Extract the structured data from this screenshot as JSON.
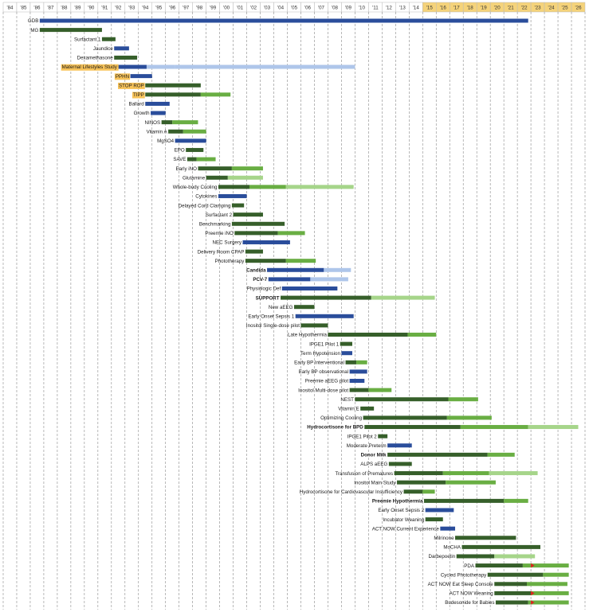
{
  "chart_data": {
    "type": "gantt",
    "title": "",
    "x_axis": {
      "start_year": 1984,
      "end_year": 2026,
      "tick_labels": [
        "'84",
        "'85",
        "'86",
        "'87",
        "'88",
        "'89",
        "'90",
        "'91",
        "'92",
        "'93",
        "'94",
        "'95",
        "'96",
        "'97",
        "'98",
        "'99",
        "'00",
        "'01",
        "'02",
        "'03",
        "'04",
        "'05",
        "'06",
        "'07",
        "'08",
        "'09",
        "'10",
        "'11",
        "'12",
        "'13",
        "'14",
        "'15",
        "'16",
        "'17",
        "'18",
        "'19",
        "'20",
        "'21",
        "'22",
        "'23",
        "'24",
        "'25",
        "'26"
      ],
      "highlight_from_year": 2015,
      "highlight_color": "#f5d37a",
      "grid": "vertical dashed per year"
    },
    "colors": {
      "navy": "#2a4d9b",
      "light_blue": "#aec6ea",
      "dark_green": "#365f2a",
      "mid_green": "#69ae43",
      "light_green": "#a6d58a",
      "highlight_label": "#f7c35a",
      "flag_red": "#e02020"
    },
    "studies": [
      {
        "name": "GDB",
        "segments": [
          {
            "start": 1986.7,
            "end": 2022.8,
            "color": "navy"
          }
        ]
      },
      {
        "name": "MG",
        "segments": [
          {
            "start": 1986.7,
            "end": 1991.3,
            "color": "dark_green"
          }
        ]
      },
      {
        "name": "Surfactant 1",
        "segments": [
          {
            "start": 1991.3,
            "end": 1992.3,
            "color": "dark_green"
          }
        ]
      },
      {
        "name": "Jaundice",
        "segments": [
          {
            "start": 1992.2,
            "end": 1993.3,
            "color": "navy"
          }
        ]
      },
      {
        "name": "Dexamethasone",
        "segments": [
          {
            "start": 1992.2,
            "end": 1993.9,
            "color": "dark_green"
          }
        ]
      },
      {
        "name": "Maternal Lifestyles Study",
        "highlight": true,
        "segments": [
          {
            "start": 1992.5,
            "end": 1994.6,
            "color": "navy"
          },
          {
            "start": 1994.6,
            "end": 1996.7,
            "color": "light_blue"
          },
          {
            "start": 1996.7,
            "end": 2010.0,
            "color": "light_blue"
          }
        ]
      },
      {
        "name": "PPHN",
        "highlight": true,
        "segments": [
          {
            "start": 1993.4,
            "end": 1995.0,
            "color": "navy"
          }
        ]
      },
      {
        "name": "STOP ROP",
        "highlight": true,
        "segments": [
          {
            "start": 1994.5,
            "end": 1998.6,
            "color": "dark_green"
          }
        ]
      },
      {
        "name": "TIPP",
        "highlight": true,
        "segments": [
          {
            "start": 1994.5,
            "end": 1998.6,
            "color": "dark_green"
          },
          {
            "start": 1998.6,
            "end": 2000.8,
            "color": "mid_green"
          }
        ]
      },
      {
        "name": "Ballard",
        "segments": [
          {
            "start": 1994.5,
            "end": 1996.3,
            "color": "navy"
          }
        ]
      },
      {
        "name": "Growth",
        "segments": [
          {
            "start": 1994.9,
            "end": 1996.0,
            "color": "navy"
          }
        ]
      },
      {
        "name": "NINOS",
        "segments": [
          {
            "start": 1995.7,
            "end": 1996.5,
            "color": "dark_green"
          },
          {
            "start": 1996.5,
            "end": 1998.4,
            "color": "mid_green"
          }
        ]
      },
      {
        "name": "Vitamin A",
        "segments": [
          {
            "start": 1996.2,
            "end": 1997.3,
            "color": "dark_green"
          },
          {
            "start": 1997.3,
            "end": 1999.0,
            "color": "mid_green"
          }
        ]
      },
      {
        "name": "MgSO4",
        "segments": [
          {
            "start": 1996.7,
            "end": 1999.0,
            "color": "navy"
          }
        ]
      },
      {
        "name": "EPO",
        "segments": [
          {
            "start": 1997.5,
            "end": 1998.8,
            "color": "dark_green"
          }
        ]
      },
      {
        "name": "SAVE",
        "segments": [
          {
            "start": 1997.6,
            "end": 1998.3,
            "color": "dark_green"
          },
          {
            "start": 1998.3,
            "end": 1999.7,
            "color": "mid_green"
          }
        ]
      },
      {
        "name": "Early iNO",
        "segments": [
          {
            "start": 1998.4,
            "end": 2000.9,
            "color": "dark_green"
          },
          {
            "start": 2000.9,
            "end": 2003.2,
            "color": "mid_green"
          }
        ]
      },
      {
        "name": "Glutamine",
        "segments": [
          {
            "start": 1999.0,
            "end": 2000.6,
            "color": "dark_green"
          },
          {
            "start": 2000.6,
            "end": 2003.2,
            "color": "light_green"
          }
        ]
      },
      {
        "name": "Whole-body Cooling",
        "segments": [
          {
            "start": 1999.9,
            "end": 2002.2,
            "color": "dark_green"
          },
          {
            "start": 2002.2,
            "end": 2004.9,
            "color": "mid_green"
          },
          {
            "start": 2004.9,
            "end": 2009.9,
            "color": "light_green"
          }
        ]
      },
      {
        "name": "Cytokines",
        "segments": [
          {
            "start": 1999.9,
            "end": 2002.0,
            "color": "navy"
          }
        ]
      },
      {
        "name": "Delayed Cord Clamping",
        "segments": [
          {
            "start": 2000.9,
            "end": 2001.8,
            "color": "dark_green"
          }
        ]
      },
      {
        "name": "Surfactant 2",
        "segments": [
          {
            "start": 2001.0,
            "end": 2003.2,
            "color": "dark_green"
          }
        ]
      },
      {
        "name": "Benchmarking",
        "segments": [
          {
            "start": 2000.9,
            "end": 2004.8,
            "color": "dark_green"
          }
        ]
      },
      {
        "name": "Preemie iNO",
        "segments": [
          {
            "start": 2001.1,
            "end": 2004.3,
            "color": "dark_green"
          },
          {
            "start": 2004.3,
            "end": 2006.3,
            "color": "mid_green"
          }
        ]
      },
      {
        "name": "NEC Surgery",
        "segments": [
          {
            "start": 2001.7,
            "end": 2005.2,
            "color": "navy"
          }
        ]
      },
      {
        "name": "Delivery Room CPAP",
        "segments": [
          {
            "start": 2001.9,
            "end": 2003.2,
            "color": "dark_green"
          }
        ]
      },
      {
        "name": "Phototherapy",
        "segments": [
          {
            "start": 2001.9,
            "end": 2004.9,
            "color": "dark_green"
          },
          {
            "start": 2004.9,
            "end": 2007.1,
            "color": "mid_green"
          }
        ]
      },
      {
        "name": "Candida",
        "bold": true,
        "segments": [
          {
            "start": 2003.5,
            "end": 2007.7,
            "color": "navy"
          },
          {
            "start": 2007.7,
            "end": 2009.7,
            "color": "light_blue"
          }
        ]
      },
      {
        "name": "PCV-7",
        "bold": true,
        "segments": [
          {
            "start": 2003.6,
            "end": 2006.7,
            "color": "navy"
          },
          {
            "start": 2006.7,
            "end": 2009.5,
            "color": "light_blue"
          }
        ]
      },
      {
        "name": "Physiologic Def",
        "segments": [
          {
            "start": 2004.6,
            "end": 2008.7,
            "color": "navy"
          }
        ]
      },
      {
        "name": "SUPPORT",
        "bold": true,
        "segments": [
          {
            "start": 2004.5,
            "end": 2011.2,
            "color": "dark_green"
          },
          {
            "start": 2011.2,
            "end": 2015.9,
            "color": "light_green"
          }
        ]
      },
      {
        "name": "New aEEG",
        "segments": [
          {
            "start": 2005.5,
            "end": 2007.0,
            "color": "dark_green"
          }
        ]
      },
      {
        "name": "Early Onset Sepsis 1",
        "segments": [
          {
            "start": 2005.6,
            "end": 2009.9,
            "color": "navy"
          }
        ]
      },
      {
        "name": "Inositol Single-dose pilot",
        "segments": [
          {
            "start": 2006.0,
            "end": 2008.0,
            "color": "dark_green"
          }
        ]
      },
      {
        "name": "Late Hypothermia",
        "segments": [
          {
            "start": 2008.0,
            "end": 2013.9,
            "color": "dark_green"
          },
          {
            "start": 2013.9,
            "end": 2016.0,
            "color": "mid_green"
          }
        ]
      },
      {
        "name": "IPGE1 Pilot 1",
        "segments": [
          {
            "start": 2008.9,
            "end": 2009.8,
            "color": "dark_green"
          }
        ]
      },
      {
        "name": "Term Hypotension",
        "segments": [
          {
            "start": 2009.0,
            "end": 2009.8,
            "color": "navy"
          }
        ]
      },
      {
        "name": "Early BP Interventional",
        "segments": [
          {
            "start": 2009.3,
            "end": 2010.1,
            "color": "dark_green"
          },
          {
            "start": 2010.1,
            "end": 2010.9,
            "color": "mid_green"
          }
        ]
      },
      {
        "name": "Early BP observational",
        "segments": [
          {
            "start": 2009.6,
            "end": 2010.9,
            "color": "navy"
          }
        ]
      },
      {
        "name": "Preemie aEEG pilot",
        "segments": [
          {
            "start": 2009.6,
            "end": 2010.7,
            "color": "navy"
          }
        ]
      },
      {
        "name": "Inositol Multi-dose pilot",
        "segments": [
          {
            "start": 2009.6,
            "end": 2011.0,
            "color": "dark_green"
          },
          {
            "start": 2011.0,
            "end": 2012.7,
            "color": "mid_green"
          }
        ]
      },
      {
        "name": "NEST",
        "segments": [
          {
            "start": 2010.0,
            "end": 2016.9,
            "color": "dark_green"
          },
          {
            "start": 2016.9,
            "end": 2019.1,
            "color": "mid_green"
          }
        ]
      },
      {
        "name": "Vitamin E",
        "segments": [
          {
            "start": 2010.4,
            "end": 2011.4,
            "color": "dark_green"
          }
        ]
      },
      {
        "name": "Optimizing Cooling",
        "segments": [
          {
            "start": 2010.6,
            "end": 2016.8,
            "color": "dark_green"
          },
          {
            "start": 2016.8,
            "end": 2020.1,
            "color": "mid_green"
          }
        ]
      },
      {
        "name": "Hydrocortisone for BPD",
        "bold": true,
        "segments": [
          {
            "start": 2010.7,
            "end": 2017.8,
            "color": "dark_green"
          },
          {
            "start": 2017.8,
            "end": 2022.8,
            "color": "mid_green"
          },
          {
            "start": 2022.8,
            "end": 2026.5,
            "color": "light_green"
          }
        ]
      },
      {
        "name": "IPGE1 Pilot 2",
        "segments": [
          {
            "start": 2011.7,
            "end": 2012.4,
            "color": "dark_green"
          }
        ]
      },
      {
        "name": "Moderate Preterm",
        "segments": [
          {
            "start": 2012.4,
            "end": 2014.2,
            "color": "navy"
          }
        ]
      },
      {
        "name": "Donor Milk",
        "bold": true,
        "segments": [
          {
            "start": 2012.4,
            "end": 2019.8,
            "color": "dark_green"
          },
          {
            "start": 2019.8,
            "end": 2021.8,
            "color": "mid_green"
          }
        ]
      },
      {
        "name": "ALPS aEEG",
        "segments": [
          {
            "start": 2012.5,
            "end": 2014.2,
            "color": "dark_green"
          }
        ]
      },
      {
        "name": "Transfusion of Prematures",
        "segments": [
          {
            "start": 2012.9,
            "end": 2016.5,
            "color": "dark_green"
          },
          {
            "start": 2016.5,
            "end": 2019.9,
            "color": "mid_green"
          },
          {
            "start": 2019.9,
            "end": 2023.5,
            "color": "light_green"
          }
        ]
      },
      {
        "name": "Inositol Main Study",
        "segments": [
          {
            "start": 2013.1,
            "end": 2016.7,
            "color": "dark_green"
          },
          {
            "start": 2016.7,
            "end": 2020.4,
            "color": "mid_green"
          }
        ]
      },
      {
        "name": "Hydrocortisone for Cardiovascular Insufficiency",
        "segments": [
          {
            "start": 2013.6,
            "end": 2015.0,
            "color": "dark_green"
          },
          {
            "start": 2015.0,
            "end": 2015.9,
            "color": "mid_green"
          }
        ]
      },
      {
        "name": "Preemie Hypothermia",
        "bold": true,
        "segments": [
          {
            "start": 2015.1,
            "end": 2021.0,
            "color": "dark_green"
          },
          {
            "start": 2021.0,
            "end": 2022.8,
            "color": "mid_green"
          }
        ]
      },
      {
        "name": "Early Onset Sepsis 2",
        "segments": [
          {
            "start": 2015.2,
            "end": 2017.3,
            "color": "navy"
          }
        ]
      },
      {
        "name": "Incubator Weaning",
        "segments": [
          {
            "start": 2015.2,
            "end": 2016.5,
            "color": "dark_green"
          }
        ]
      },
      {
        "name": "ACT NOW Current Experience",
        "segments": [
          {
            "start": 2016.3,
            "end": 2017.4,
            "color": "navy"
          }
        ]
      },
      {
        "name": "Milrinone",
        "segments": [
          {
            "start": 2017.4,
            "end": 2021.9,
            "color": "dark_green"
          }
        ]
      },
      {
        "name": "MoCHA",
        "segments": [
          {
            "start": 2017.9,
            "end": 2023.7,
            "color": "dark_green"
          }
        ]
      },
      {
        "name": "Darbepoetin",
        "segments": [
          {
            "start": 2017.5,
            "end": 2020.3,
            "color": "dark_green"
          },
          {
            "start": 2020.3,
            "end": 2023.3,
            "color": "light_green"
          }
        ]
      },
      {
        "name": "PDA",
        "flag": 2023.0,
        "segments": [
          {
            "start": 2018.9,
            "end": 2022.4,
            "color": "dark_green"
          },
          {
            "start": 2022.4,
            "end": 2025.8,
            "color": "mid_green"
          }
        ]
      },
      {
        "name": "Cycled Phototherapy",
        "segments": [
          {
            "start": 2019.8,
            "end": 2023.9,
            "color": "dark_green"
          },
          {
            "start": 2023.9,
            "end": 2025.8,
            "color": "mid_green"
          }
        ]
      },
      {
        "name": "ACT NOW Eat Sleep Console",
        "segments": [
          {
            "start": 2020.3,
            "end": 2022.7,
            "color": "dark_green"
          },
          {
            "start": 2022.7,
            "end": 2025.7,
            "color": "mid_green"
          }
        ]
      },
      {
        "name": "ACT NOW Weaning",
        "flag": 2023.0,
        "segments": [
          {
            "start": 2020.3,
            "end": 2023.0,
            "color": "dark_green"
          },
          {
            "start": 2023.0,
            "end": 2025.8,
            "color": "mid_green"
          }
        ]
      },
      {
        "name": "Budesonide for Babies",
        "flag": 2023.0,
        "segments": [
          {
            "start": 2020.4,
            "end": 2022.8,
            "color": "dark_green"
          },
          {
            "start": 2022.8,
            "end": 2025.8,
            "color": "mid_green"
          }
        ]
      }
    ]
  }
}
